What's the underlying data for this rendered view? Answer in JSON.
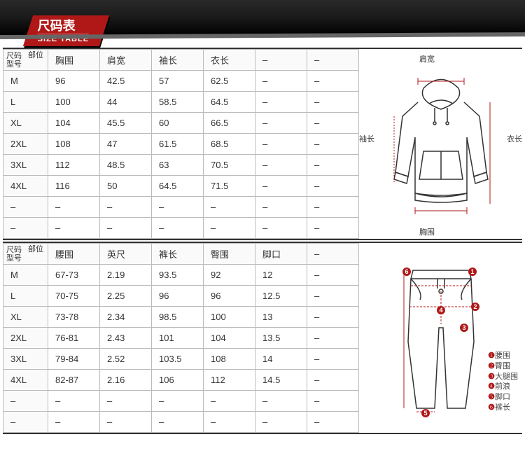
{
  "header": {
    "title_cn": "尺码表",
    "title_en": "SIZE TABLE"
  },
  "colors": {
    "accent": "#b01818",
    "border": "#bbbbbb",
    "header_dark": "#1a1a1a"
  },
  "corner": {
    "top": "部位",
    "bottom_a": "尺码",
    "bottom_b": "型号"
  },
  "top_table": {
    "type": "table",
    "columns": [
      "胸围",
      "肩宽",
      "袖长",
      "衣长",
      "–",
      "–"
    ],
    "rows": [
      [
        "M",
        "96",
        "42.5",
        "57",
        "62.5",
        "–",
        "–"
      ],
      [
        "L",
        "100",
        "44",
        "58.5",
        "64.5",
        "–",
        "–"
      ],
      [
        "XL",
        "104",
        "45.5",
        "60",
        "66.5",
        "–",
        "–"
      ],
      [
        "2XL",
        "108",
        "47",
        "61.5",
        "68.5",
        "–",
        "–"
      ],
      [
        "3XL",
        "112",
        "48.5",
        "63",
        "70.5",
        "–",
        "–"
      ],
      [
        "4XL",
        "116",
        "50",
        "64.5",
        "71.5",
        "–",
        "–"
      ],
      [
        "–",
        "–",
        "–",
        "–",
        "–",
        "–",
        "–"
      ],
      [
        "–",
        "–",
        "–",
        "–",
        "–",
        "–",
        "–"
      ]
    ],
    "diagram_labels": {
      "top": "肩宽",
      "left": "袖长",
      "right": "衣长",
      "bottom": "胸围"
    }
  },
  "bottom_table": {
    "type": "table",
    "columns": [
      "腰围",
      "英尺",
      "裤长",
      "臀围",
      "脚口",
      "–"
    ],
    "rows": [
      [
        "M",
        "67-73",
        "2.19",
        "93.5",
        "92",
        "12",
        "–"
      ],
      [
        "L",
        "70-75",
        "2.25",
        "96",
        "96",
        "12.5",
        "–"
      ],
      [
        "XL",
        "73-78",
        "2.34",
        "98.5",
        "100",
        "13",
        "–"
      ],
      [
        "2XL",
        "76-81",
        "2.43",
        "101",
        "104",
        "13.5",
        "–"
      ],
      [
        "3XL",
        "79-84",
        "2.52",
        "103.5",
        "108",
        "14",
        "–"
      ],
      [
        "4XL",
        "82-87",
        "2.16",
        "106",
        "112",
        "14.5",
        "–"
      ],
      [
        "–",
        "–",
        "–",
        "–",
        "–",
        "–",
        "–"
      ],
      [
        "–",
        "–",
        "–",
        "–",
        "–",
        "–",
        "–"
      ]
    ],
    "legend": [
      "腰围",
      "臀围",
      "大腿围",
      "前浪",
      "脚口",
      "裤长"
    ]
  }
}
